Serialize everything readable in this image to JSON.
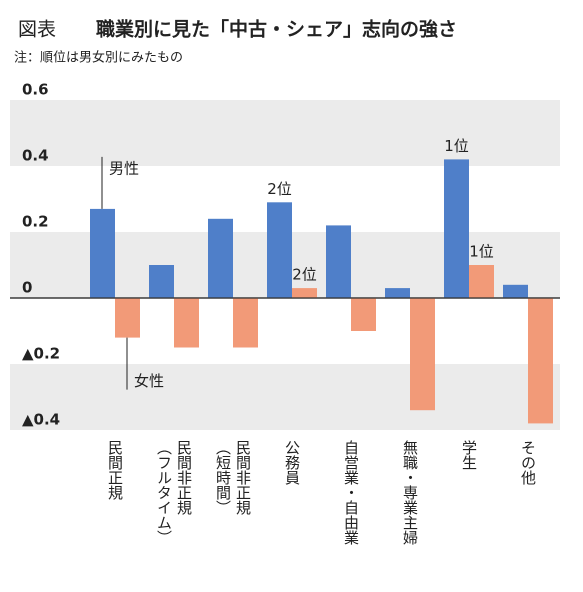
{
  "chart_data": {
    "type": "bar",
    "label": "図表",
    "title": "職業別に見た「中古・シェア」志向の強さ",
    "subtitle": "注：順位は男女別にみたもの",
    "categories": [
      "民間正規",
      "民間非正規\n（フルタイム）",
      "民間非正規\n（短時間）",
      "公務員",
      "自営業・自由業",
      "無職・専業主婦",
      "学生",
      "その他"
    ],
    "series": [
      {
        "name": "男性",
        "color": "#4f7fc9",
        "values": [
          0.27,
          0.1,
          0.24,
          0.29,
          0.22,
          0.03,
          0.42,
          0.04
        ]
      },
      {
        "name": "女性",
        "color": "#f29a78",
        "values": [
          -0.12,
          -0.15,
          -0.15,
          0.03,
          -0.1,
          -0.34,
          0.1,
          -0.38
        ]
      }
    ],
    "annotations": [
      {
        "text": "2位",
        "series": 0,
        "index": 3
      },
      {
        "text": "2位",
        "series": 1,
        "index": 3
      },
      {
        "text": "1位",
        "series": 0,
        "index": 6
      },
      {
        "text": "1位",
        "series": 1,
        "index": 6
      }
    ],
    "ylim": [
      -0.4,
      0.6
    ],
    "yticks": [
      0.6,
      0.4,
      0.2,
      0,
      {
        "value": -0.2,
        "label": "▲0.2"
      },
      {
        "value": -0.4,
        "label": "▲0.4"
      }
    ],
    "grid": true
  }
}
